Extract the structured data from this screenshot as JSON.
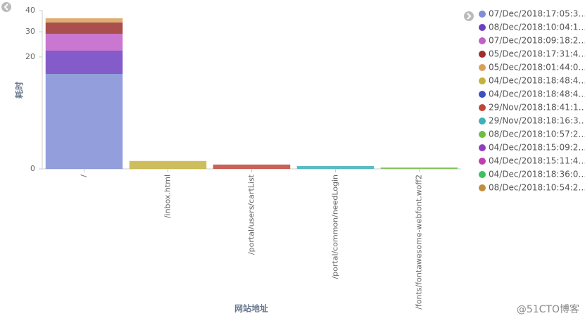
{
  "chart_data": {
    "type": "stacked-bar",
    "y_scale": "sqrt",
    "x_label": "网站地址",
    "y_label": "耗时",
    "categories": [
      "/",
      "/inbox.html",
      "/portal/users/cartList",
      "/portal/common/needLogin",
      "/fonts/fontawesome-webfont.woff2"
    ],
    "ylim": [
      0,
      40
    ],
    "yticks": [
      0,
      20,
      30,
      40
    ],
    "series": [
      {
        "name": "07/Dec/2018:17:05:3…",
        "color": "#7f8ed6",
        "values": [
          14.4,
          null,
          null,
          null,
          null
        ]
      },
      {
        "name": "08/Dec/2018:10:04:1…",
        "color": "#6f3fbf",
        "values": [
          7.9,
          null,
          null,
          null,
          null
        ]
      },
      {
        "name": "07/Dec/2018:09:18:2…",
        "color": "#c05fc8",
        "values": [
          6.8,
          null,
          null,
          null,
          null
        ]
      },
      {
        "name": "05/Dec/2018:17:31:4…",
        "color": "#9c2f2f",
        "values": [
          5.1,
          null,
          null,
          null,
          null
        ]
      },
      {
        "name": "05/Dec/2018:01:44:0…",
        "color": "#d9a05a",
        "values": [
          2.0,
          null,
          null,
          null,
          null
        ]
      },
      {
        "name": "04/Dec/2018:18:48:4…",
        "color": "#c4b23f",
        "values": [
          null,
          0.1,
          null,
          null,
          null
        ]
      },
      {
        "name": "04/Dec/2018:18:48:4…",
        "color": "#3f4fbf",
        "values": [
          null,
          null,
          null,
          null,
          null
        ]
      },
      {
        "name": "29/Nov/2018:18:41:1…",
        "color": "#c0463a",
        "values": [
          null,
          null,
          0.03,
          null,
          null
        ]
      },
      {
        "name": "29/Nov/2018:18:16:3…",
        "color": "#3fb0b8",
        "values": [
          null,
          null,
          null,
          0.013,
          null
        ]
      },
      {
        "name": "08/Dec/2018:10:57:2…",
        "color": "#6ebd3f",
        "values": [
          null,
          null,
          null,
          null,
          0.003
        ]
      },
      {
        "name": "04/Dec/2018:15:09:2…",
        "color": "#8f3fbf",
        "values": [
          null,
          null,
          null,
          null,
          null
        ]
      },
      {
        "name": "04/Dec/2018:15:11:4…",
        "color": "#c03fb0",
        "values": [
          null,
          null,
          null,
          null,
          null
        ]
      },
      {
        "name": "04/Dec/2018:18:36:0…",
        "color": "#3fbf5f",
        "values": [
          null,
          null,
          null,
          null,
          null
        ]
      },
      {
        "name": "08/Dec/2018:10:54:2…",
        "color": "#bf8f3f",
        "values": [
          null,
          null,
          null,
          null,
          null
        ]
      }
    ]
  },
  "watermark": "@51CTO博客"
}
